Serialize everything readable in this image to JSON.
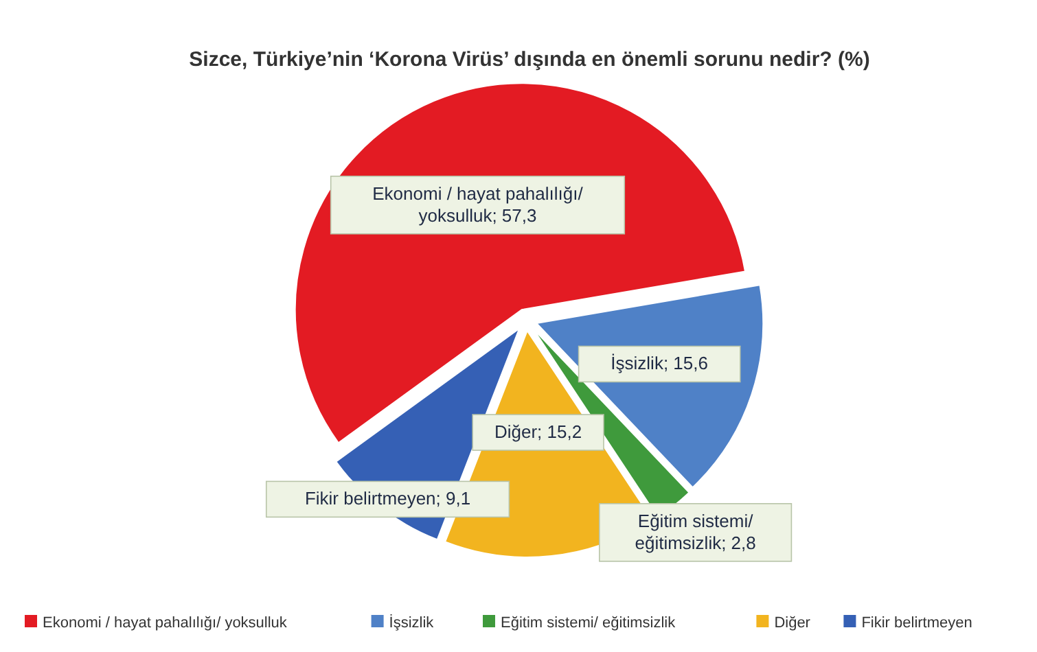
{
  "chart_data": {
    "type": "pie",
    "title": "Sizce, Türkiye’nin ‘Korona Virüs’ dışında en önemli sorunu nedir? (%)",
    "categories": [
      "Ekonomi / hayat pahalılığı/ yoksulluk",
      "İşsizlik",
      "Eğitim sistemi/ eğitimsizlik",
      "Diğer",
      "Fikir belirtmeyen"
    ],
    "values": [
      57.3,
      15.6,
      2.8,
      15.2,
      9.1
    ],
    "colors": [
      "#e31b23",
      "#4f81c7",
      "#3f9a3c",
      "#f2b41f",
      "#3560b5"
    ],
    "value_labels": [
      "Ekonomi / hayat pahalılığı/ yoksulluk; 57,3",
      "İşsizlik; 15,6",
      "Eğitim sistemi/ eğitimsizlik; 2,8",
      "Diğer; 15,2",
      "Fikir belirtmeyen; 9,1"
    ],
    "legend": "bottom"
  }
}
